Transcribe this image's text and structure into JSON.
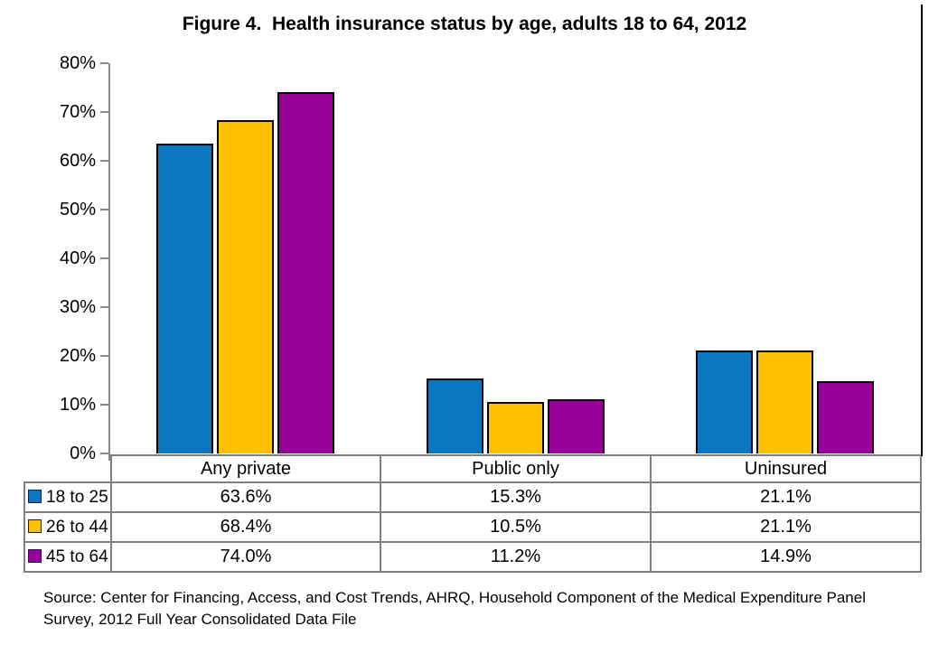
{
  "page": {
    "background": "#ffffff"
  },
  "chart_data": {
    "type": "bar",
    "title": "Figure 4.  Health insurance status by age, adults 18 to 64, 2012",
    "categories": [
      "Any private",
      "Public only",
      "Uninsured"
    ],
    "series": [
      {
        "name": "18 to 25",
        "color": "#0B77C2",
        "values": [
          63.6,
          15.3,
          21.1
        ],
        "labels": [
          "63.6%",
          "15.3%",
          "21.1%"
        ]
      },
      {
        "name": "26 to 44",
        "color": "#FFC000",
        "values": [
          68.4,
          10.5,
          21.1
        ],
        "labels": [
          "68.4%",
          "10.5%",
          "21.1%"
        ]
      },
      {
        "name": "45 to 64",
        "color": "#990099",
        "values": [
          74.0,
          11.2,
          14.9
        ],
        "labels": [
          "74.0%",
          "11.2%",
          "14.9%"
        ]
      }
    ],
    "ylim": [
      0,
      80
    ],
    "ytick_labels": [
      "80%",
      "70%",
      "60%",
      "50%",
      "40%",
      "30%",
      "20%",
      "10%",
      "0%"
    ],
    "grid": false,
    "legend_position": "table-rows-left",
    "xlabel": "",
    "ylabel": "",
    "bar_border_color": "#000000",
    "axis_color": "#8a8a8a",
    "table_border_color": "#808080"
  },
  "source_note": "Source: Center for Financing, Access, and Cost Trends, AHRQ, Household Component of the Medical Expenditure Panel Survey, 2012 Full Year Consolidated Data File"
}
